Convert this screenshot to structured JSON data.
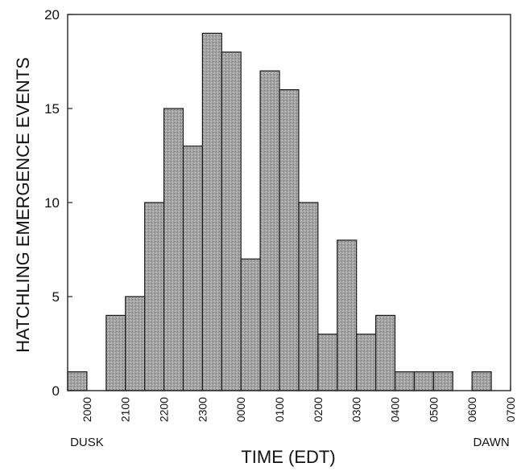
{
  "chart_data": {
    "type": "bar",
    "title": "",
    "xlabel": "TIME (EDT)",
    "ylabel": "HATCHLING EMERGENCE EVENTS",
    "ylim": [
      0,
      20
    ],
    "yticks": [
      0,
      5,
      10,
      15,
      20
    ],
    "xlim": [
      19.5,
      31.0
    ],
    "xticks": [
      {
        "value": 20,
        "label": "2000"
      },
      {
        "value": 21,
        "label": "2100"
      },
      {
        "value": 22,
        "label": "2200"
      },
      {
        "value": 23,
        "label": "2300"
      },
      {
        "value": 24,
        "label": "0000"
      },
      {
        "value": 25,
        "label": "0100"
      },
      {
        "value": 26,
        "label": "0200"
      },
      {
        "value": 27,
        "label": "0300"
      },
      {
        "value": 28,
        "label": "0400"
      },
      {
        "value": 29,
        "label": "0500"
      },
      {
        "value": 30,
        "label": "0600"
      },
      {
        "value": 31,
        "label": "0700"
      }
    ],
    "bin_width_hours": 0.5,
    "bins": [
      {
        "start": 19.5,
        "value": 1
      },
      {
        "start": 20.0,
        "value": 0
      },
      {
        "start": 20.5,
        "value": 4
      },
      {
        "start": 21.0,
        "value": 5
      },
      {
        "start": 21.5,
        "value": 10
      },
      {
        "start": 22.0,
        "value": 15
      },
      {
        "start": 22.5,
        "value": 13
      },
      {
        "start": 23.0,
        "value": 19
      },
      {
        "start": 23.5,
        "value": 18
      },
      {
        "start": 24.0,
        "value": 7
      },
      {
        "start": 24.5,
        "value": 17
      },
      {
        "start": 25.0,
        "value": 16
      },
      {
        "start": 25.5,
        "value": 10
      },
      {
        "start": 26.0,
        "value": 3
      },
      {
        "start": 26.5,
        "value": 8
      },
      {
        "start": 27.0,
        "value": 3
      },
      {
        "start": 27.5,
        "value": 4
      },
      {
        "start": 28.0,
        "value": 1
      },
      {
        "start": 28.5,
        "value": 1
      },
      {
        "start": 29.0,
        "value": 1
      },
      {
        "start": 29.5,
        "value": 0
      },
      {
        "start": 30.0,
        "value": 1
      },
      {
        "start": 30.5,
        "value": 0
      }
    ],
    "annotations": [
      {
        "text": "DUSK",
        "x": 20
      },
      {
        "text": "DAWN",
        "x": 30.5
      }
    ],
    "bar_color": "#a9a9a9",
    "grid": false,
    "legend": "none"
  }
}
